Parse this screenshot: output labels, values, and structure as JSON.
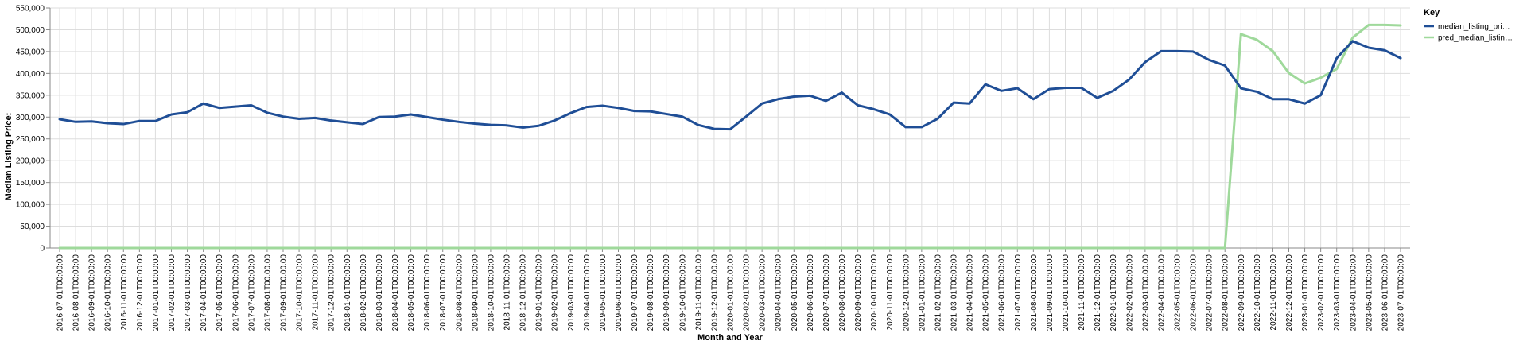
{
  "chart_data": {
    "type": "line",
    "xlabel": "Month and Year",
    "ylabel": "Median Listing Price:",
    "ylim": [
      0,
      550000
    ],
    "y_ticks": [
      0,
      50000,
      100000,
      150000,
      200000,
      250000,
      300000,
      350000,
      400000,
      450000,
      500000,
      550000
    ],
    "grid": true,
    "legend": {
      "title": "Key",
      "placement": "top-right"
    },
    "x": [
      "2016-07-01T00:00:00",
      "2016-08-01T00:00:00",
      "2016-09-01T00:00:00",
      "2016-10-01T00:00:00",
      "2016-11-01T00:00:00",
      "2016-12-01T00:00:00",
      "2017-01-01T00:00:00",
      "2017-02-01T00:00:00",
      "2017-03-01T00:00:00",
      "2017-04-01T00:00:00",
      "2017-05-01T00:00:00",
      "2017-06-01T00:00:00",
      "2017-07-01T00:00:00",
      "2017-08-01T00:00:00",
      "2017-09-01T00:00:00",
      "2017-10-01T00:00:00",
      "2017-11-01T00:00:00",
      "2017-12-01T00:00:00",
      "2018-01-01T00:00:00",
      "2018-02-01T00:00:00",
      "2018-03-01T00:00:00",
      "2018-04-01T00:00:00",
      "2018-05-01T00:00:00",
      "2018-06-01T00:00:00",
      "2018-07-01T00:00:00",
      "2018-08-01T00:00:00",
      "2018-09-01T00:00:00",
      "2018-10-01T00:00:00",
      "2018-11-01T00:00:00",
      "2018-12-01T00:00:00",
      "2019-01-01T00:00:00",
      "2019-02-01T00:00:00",
      "2019-03-01T00:00:00",
      "2019-04-01T00:00:00",
      "2019-05-01T00:00:00",
      "2019-06-01T00:00:00",
      "2019-07-01T00:00:00",
      "2019-08-01T00:00:00",
      "2019-09-01T00:00:00",
      "2019-10-01T00:00:00",
      "2019-11-01T00:00:00",
      "2019-12-01T00:00:00",
      "2020-01-01T00:00:00",
      "2020-02-01T00:00:00",
      "2020-03-01T00:00:00",
      "2020-04-01T00:00:00",
      "2020-05-01T00:00:00",
      "2020-06-01T00:00:00",
      "2020-07-01T00:00:00",
      "2020-08-01T00:00:00",
      "2020-09-01T00:00:00",
      "2020-10-01T00:00:00",
      "2020-11-01T00:00:00",
      "2020-12-01T00:00:00",
      "2021-01-01T00:00:00",
      "2021-02-01T00:00:00",
      "2021-03-01T00:00:00",
      "2021-04-01T00:00:00",
      "2021-05-01T00:00:00",
      "2021-06-01T00:00:00",
      "2021-07-01T00:00:00",
      "2021-08-01T00:00:00",
      "2021-09-01T00:00:00",
      "2021-10-01T00:00:00",
      "2021-11-01T00:00:00",
      "2021-12-01T00:00:00",
      "2022-01-01T00:00:00",
      "2022-02-01T00:00:00",
      "2022-03-01T00:00:00",
      "2022-04-01T00:00:00",
      "2022-05-01T00:00:00",
      "2022-06-01T00:00:00",
      "2022-07-01T00:00:00",
      "2022-08-01T00:00:00",
      "2022-09-01T00:00:00",
      "2022-10-01T00:00:00",
      "2022-11-01T00:00:00",
      "2022-12-01T00:00:00",
      "2023-01-01T00:00:00",
      "2023-02-01T00:00:00",
      "2023-03-01T00:00:00",
      "2023-04-01T00:00:00",
      "2023-05-01T00:00:00",
      "2023-06-01T00:00:00",
      "2023-07-01T00:00:00"
    ],
    "series": [
      {
        "name": "median_listing_pri…",
        "color": "#1f4e96",
        "values": [
          295000,
          289000,
          290000,
          286000,
          284000,
          291000,
          291000,
          306000,
          311000,
          331000,
          321000,
          324000,
          327000,
          310000,
          301000,
          296000,
          298000,
          292000,
          288000,
          284000,
          300000,
          301000,
          306000,
          300000,
          294000,
          289000,
          285000,
          282000,
          281000,
          276000,
          280000,
          292000,
          309000,
          323000,
          326000,
          321000,
          314000,
          313000,
          307000,
          301000,
          282000,
          273000,
          272000,
          301000,
          331000,
          341000,
          347000,
          349000,
          337000,
          356000,
          327000,
          318000,
          306000,
          277000,
          277000,
          296000,
          333000,
          331000,
          375000,
          360000,
          366000,
          341000,
          364000,
          367000,
          367000,
          344000,
          360000,
          386000,
          426000,
          451000,
          451000,
          450000,
          431000,
          418000,
          366000,
          358000,
          341000,
          341000,
          331000,
          350000,
          435000,
          474000,
          459000,
          453000,
          435000
        ]
      },
      {
        "name": "pred_median_listin…",
        "color": "#9fd99b",
        "values": [
          0,
          0,
          0,
          0,
          0,
          0,
          0,
          0,
          0,
          0,
          0,
          0,
          0,
          0,
          0,
          0,
          0,
          0,
          0,
          0,
          0,
          0,
          0,
          0,
          0,
          0,
          0,
          0,
          0,
          0,
          0,
          0,
          0,
          0,
          0,
          0,
          0,
          0,
          0,
          0,
          0,
          0,
          0,
          0,
          0,
          0,
          0,
          0,
          0,
          0,
          0,
          0,
          0,
          0,
          0,
          0,
          0,
          0,
          0,
          0,
          0,
          0,
          0,
          0,
          0,
          0,
          0,
          0,
          0,
          0,
          0,
          0,
          0,
          0,
          490000,
          477000,
          451000,
          401000,
          377000,
          390000,
          410000,
          482000,
          511000,
          511000,
          510000
        ]
      }
    ]
  }
}
